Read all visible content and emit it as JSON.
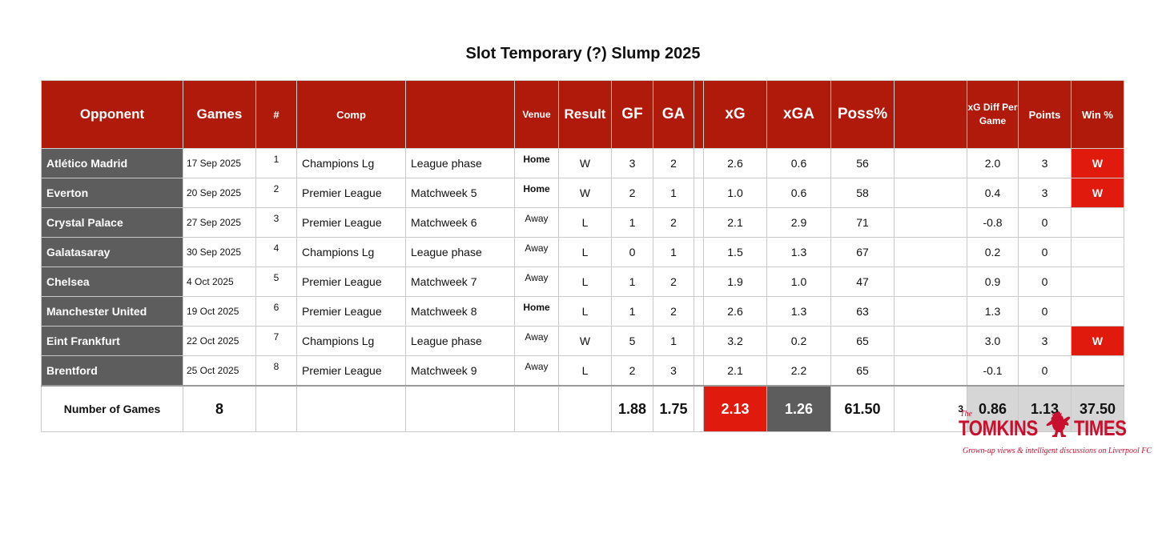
{
  "title": "Slot Temporary (?) Slump 2025",
  "headers": {
    "opponent": "Opponent",
    "games": "Games",
    "num": "#",
    "comp": "Comp",
    "stage": "",
    "venue": "Venue",
    "result": "Result",
    "gf": "GF",
    "ga": "GA",
    "gap": "",
    "xg": "xG",
    "xga": "xGA",
    "poss": "Poss%",
    "blank": "",
    "xgdiff": "xG Diff Per Game",
    "points": "Points",
    "win": "Win %"
  },
  "rows": [
    {
      "opponent": "Atlético Madrid",
      "date": "17 Sep 2025",
      "num": "1",
      "comp": "Champions Lg",
      "stage": "League phase",
      "venue": "Home",
      "result": "W",
      "gf": "3",
      "ga": "2",
      "xg": "2.6",
      "xga": "0.6",
      "poss": "56",
      "xgdiff": "2.0",
      "points": "3",
      "win": "W"
    },
    {
      "opponent": "Everton",
      "date": "20 Sep 2025",
      "num": "2",
      "comp": "Premier League",
      "stage": "Matchweek 5",
      "venue": "Home",
      "result": "W",
      "gf": "2",
      "ga": "1",
      "xg": "1.0",
      "xga": "0.6",
      "poss": "58",
      "xgdiff": "0.4",
      "points": "3",
      "win": "W"
    },
    {
      "opponent": "Crystal Palace",
      "date": "27 Sep 2025",
      "num": "3",
      "comp": "Premier League",
      "stage": "Matchweek 6",
      "venue": "Away",
      "result": "L",
      "gf": "1",
      "ga": "2",
      "xg": "2.1",
      "xga": "2.9",
      "poss": "71",
      "xgdiff": "-0.8",
      "points": "0",
      "win": ""
    },
    {
      "opponent": "Galatasaray",
      "date": "30 Sep 2025",
      "num": "4",
      "comp": "Champions Lg",
      "stage": "League phase",
      "venue": "Away",
      "result": "L",
      "gf": "0",
      "ga": "1",
      "xg": "1.5",
      "xga": "1.3",
      "poss": "67",
      "xgdiff": "0.2",
      "points": "0",
      "win": ""
    },
    {
      "opponent": "Chelsea",
      "date": "4 Oct 2025",
      "num": "5",
      "comp": "Premier League",
      "stage": "Matchweek 7",
      "venue": "Away",
      "result": "L",
      "gf": "1",
      "ga": "2",
      "xg": "1.9",
      "xga": "1.0",
      "poss": "47",
      "xgdiff": "0.9",
      "points": "0",
      "win": ""
    },
    {
      "opponent": "Manchester United",
      "date": "19 Oct 2025",
      "num": "6",
      "comp": "Premier League",
      "stage": "Matchweek 8",
      "venue": "Home",
      "result": "L",
      "gf": "1",
      "ga": "2",
      "xg": "2.6",
      "xga": "1.3",
      "poss": "63",
      "xgdiff": "1.3",
      "points": "0",
      "win": ""
    },
    {
      "opponent": "Eint Frankfurt",
      "date": "22 Oct 2025",
      "num": "7",
      "comp": "Champions Lg",
      "stage": "League phase",
      "venue": "Away",
      "result": "W",
      "gf": "5",
      "ga": "1",
      "xg": "3.2",
      "xga": "0.2",
      "poss": "65",
      "xgdiff": "3.0",
      "points": "3",
      "win": "W"
    },
    {
      "opponent": "Brentford",
      "date": "25 Oct 2025",
      "num": "8",
      "comp": "Premier League",
      "stage": "Matchweek 9",
      "venue": "Away",
      "result": "L",
      "gf": "2",
      "ga": "3",
      "xg": "2.1",
      "xga": "2.2",
      "poss": "65",
      "xgdiff": "-0.1",
      "points": "0",
      "win": ""
    }
  ],
  "summary": {
    "label": "Number of Games",
    "games": "8",
    "gf": "1.88",
    "ga": "1.75",
    "xg": "2.13",
    "xga": "1.26",
    "poss": "61.50",
    "wins": "3",
    "xgdiff": "0.86",
    "points": "1.13",
    "win": "37.50"
  },
  "logo": {
    "the": "The",
    "brand_left": "TOMKINS",
    "brand_right": "TIMES",
    "tagline": "Grown-up views & intelligent discussions on Liverpool FC",
    "color": "#c8102e"
  },
  "colors": {
    "header_red": "#b01a0b",
    "win_red": "#e01a0d",
    "opponent_grey": "#5d5d5d",
    "summary_grey": "#d6d6d6"
  }
}
